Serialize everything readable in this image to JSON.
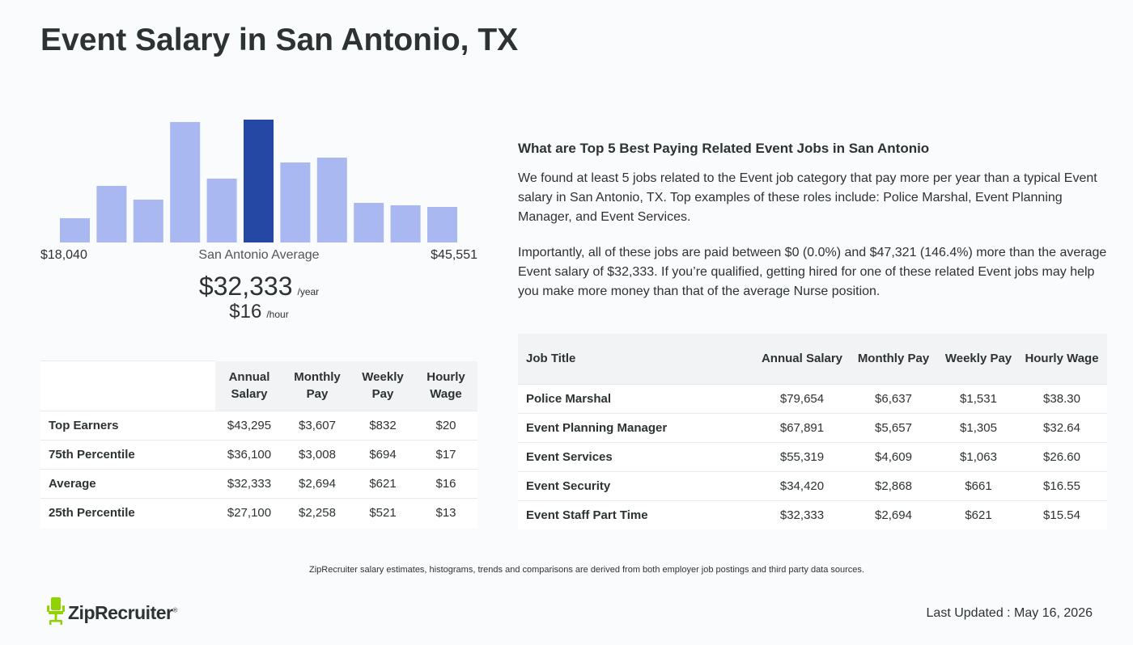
{
  "page": {
    "title": "Event Salary in San Antonio, TX"
  },
  "histogram": {
    "min_label": "$18,040",
    "mid_label": "San Antonio Average",
    "max_label": "$45,551",
    "avg_year": "$32,333",
    "avg_year_unit": "/year",
    "avg_hour": "$16",
    "avg_hour_unit": "/hour",
    "bar_color": "#a9b8f0",
    "highlight_color": "#2448a4",
    "chart_data": {
      "type": "bar",
      "values": [
        0.2,
        0.46,
        0.35,
        0.98,
        0.52,
        1.0,
        0.65,
        0.69,
        0.32,
        0.3,
        0.29
      ],
      "highlight_index": 5
    }
  },
  "left_table": {
    "headers": [
      "",
      "Annual Salary",
      "Monthly Pay",
      "Weekly Pay",
      "Hourly Wage"
    ],
    "rows": [
      [
        "Top Earners",
        "$43,295",
        "$3,607",
        "$832",
        "$20"
      ],
      [
        "75th Percentile",
        "$36,100",
        "$3,008",
        "$694",
        "$17"
      ],
      [
        "Average",
        "$32,333",
        "$2,694",
        "$621",
        "$16"
      ],
      [
        "25th Percentile",
        "$27,100",
        "$2,258",
        "$521",
        "$13"
      ]
    ]
  },
  "right": {
    "heading": "What are Top 5 Best Paying Related Event Jobs in San Antonio",
    "para1": "We found at least 5 jobs related to the Event job category that pay more per year than a typical Event salary in San Antonio, TX. Top examples of these roles include: Police Marshal, Event Planning Manager, and Event Services.",
    "para2": "Importantly, all of these jobs are paid between $0 (0.0%) and $47,321 (146.4%) more than the average Event salary of $32,333. If you’re qualified, getting hired for one of these related Event jobs may help you make more money than that of the average Nurse position."
  },
  "right_table": {
    "headers": [
      "Job Title",
      "Annual Salary",
      "Monthly Pay",
      "Weekly Pay",
      "Hourly Wage"
    ],
    "rows": [
      [
        "Police Marshal",
        "$79,654",
        "$6,637",
        "$1,531",
        "$38.30"
      ],
      [
        "Event Planning Manager",
        "$67,891",
        "$5,657",
        "$1,305",
        "$32.64"
      ],
      [
        "Event Services",
        "$55,319",
        "$4,609",
        "$1,063",
        "$26.60"
      ],
      [
        "Event Security",
        "$34,420",
        "$2,868",
        "$661",
        "$16.55"
      ],
      [
        "Event Staff Part Time",
        "$32,333",
        "$2,694",
        "$621",
        "$15.54"
      ]
    ]
  },
  "footer": {
    "note": "ZipRecruiter salary estimates, histograms, trends and comparisons are derived from both employer job postings and third party data sources.",
    "logo_text": "ZipRecruiter",
    "logo_mark": "®",
    "logo_color": "#8fd400",
    "updated": "Last Updated : May 16, 2026"
  }
}
